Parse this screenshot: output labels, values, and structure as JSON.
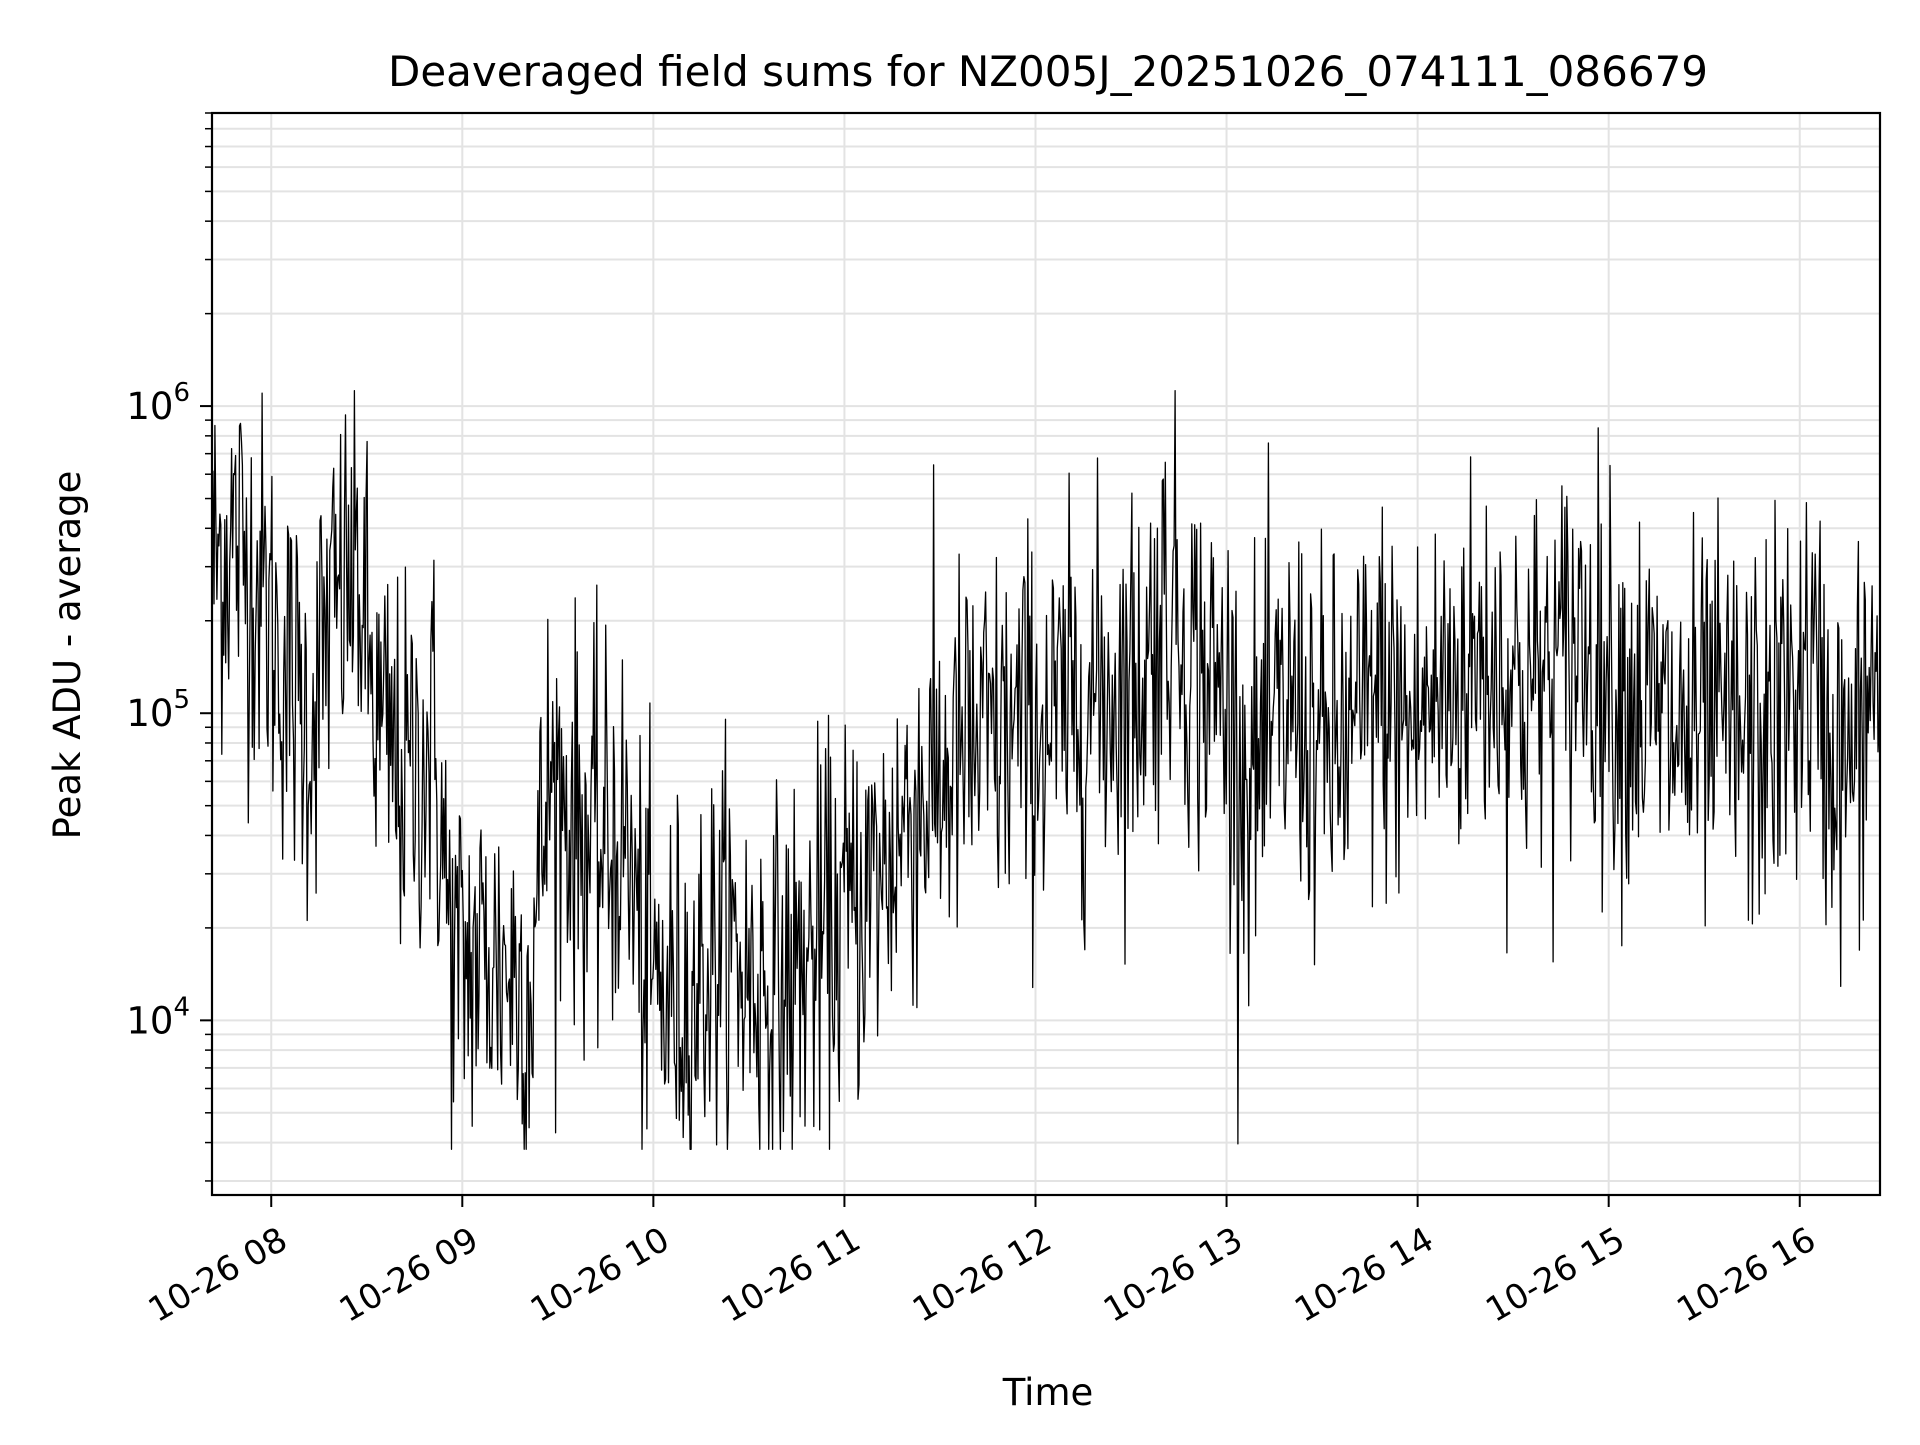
{
  "chart_data": {
    "type": "line",
    "title": "Deaveraged field sums for NZ005J_20251026_074111_086679",
    "xlabel": "Time",
    "ylabel": "Peak ADU - average",
    "x_axis_type": "time",
    "x_range_hours": [
      7.69,
      16.42
    ],
    "y_scale": "log",
    "ylim": [
      2700,
      9000000
    ],
    "x_ticks": [
      {
        "label": "10-26 08",
        "hour": 8
      },
      {
        "label": "10-26 09",
        "hour": 9
      },
      {
        "label": "10-26 10",
        "hour": 10
      },
      {
        "label": "10-26 11",
        "hour": 11
      },
      {
        "label": "10-26 12",
        "hour": 12
      },
      {
        "label": "10-26 13",
        "hour": 13
      },
      {
        "label": "10-26 14",
        "hour": 14
      },
      {
        "label": "10-26 15",
        "hour": 15
      },
      {
        "label": "10-26 16",
        "hour": 16
      }
    ],
    "y_ticks": [
      {
        "base": "10",
        "exp": "4",
        "value": 10000
      },
      {
        "base": "10",
        "exp": "5",
        "value": 100000
      },
      {
        "base": "10",
        "exp": "6",
        "value": 1000000
      }
    ],
    "grid": true,
    "series": [
      {
        "name": "Peak ADU - average",
        "color": "#000000",
        "sampling_note": "dense noisy series approximated by local median envelope (hour, value)",
        "envelope_median": [
          [
            7.69,
            300000
          ],
          [
            7.8,
            380000
          ],
          [
            7.95,
            250000
          ],
          [
            8.05,
            150000
          ],
          [
            8.2,
            90000
          ],
          [
            8.3,
            200000
          ],
          [
            8.45,
            300000
          ],
          [
            8.55,
            90000
          ],
          [
            8.7,
            60000
          ],
          [
            8.85,
            80000
          ],
          [
            8.95,
            15000
          ],
          [
            9.1,
            16000
          ],
          [
            9.25,
            15000
          ],
          [
            9.35,
            12000
          ],
          [
            9.45,
            60000
          ],
          [
            9.55,
            50000
          ],
          [
            9.7,
            35000
          ],
          [
            9.85,
            40000
          ],
          [
            9.95,
            15000
          ],
          [
            10.05,
            12000
          ],
          [
            10.2,
            12000
          ],
          [
            10.35,
            18000
          ],
          [
            10.5,
            14000
          ],
          [
            10.65,
            12000
          ],
          [
            10.8,
            15000
          ],
          [
            10.95,
            20000
          ],
          [
            11.1,
            25000
          ],
          [
            11.2,
            30000
          ],
          [
            11.35,
            50000
          ],
          [
            11.5,
            60000
          ],
          [
            11.65,
            75000
          ],
          [
            11.8,
            80000
          ],
          [
            11.95,
            90000
          ],
          [
            12.1,
            90000
          ],
          [
            12.25,
            110000
          ],
          [
            12.4,
            120000
          ],
          [
            12.55,
            130000
          ],
          [
            12.7,
            250000
          ],
          [
            12.85,
            140000
          ],
          [
            13.0,
            110000
          ],
          [
            13.1,
            60000
          ],
          [
            13.2,
            70000
          ],
          [
            13.35,
            110000
          ],
          [
            13.5,
            70000
          ],
          [
            13.65,
            80000
          ],
          [
            13.8,
            120000
          ],
          [
            13.95,
            90000
          ],
          [
            14.1,
            110000
          ],
          [
            14.25,
            140000
          ],
          [
            14.4,
            150000
          ],
          [
            14.55,
            120000
          ],
          [
            14.7,
            130000
          ],
          [
            14.85,
            180000
          ],
          [
            15.0,
            130000
          ],
          [
            15.15,
            110000
          ],
          [
            15.3,
            90000
          ],
          [
            15.45,
            80000
          ],
          [
            15.6,
            90000
          ],
          [
            15.75,
            80000
          ],
          [
            15.9,
            100000
          ],
          [
            16.05,
            140000
          ],
          [
            16.15,
            80000
          ],
          [
            16.25,
            60000
          ],
          [
            16.42,
            150000
          ]
        ]
      }
    ]
  }
}
